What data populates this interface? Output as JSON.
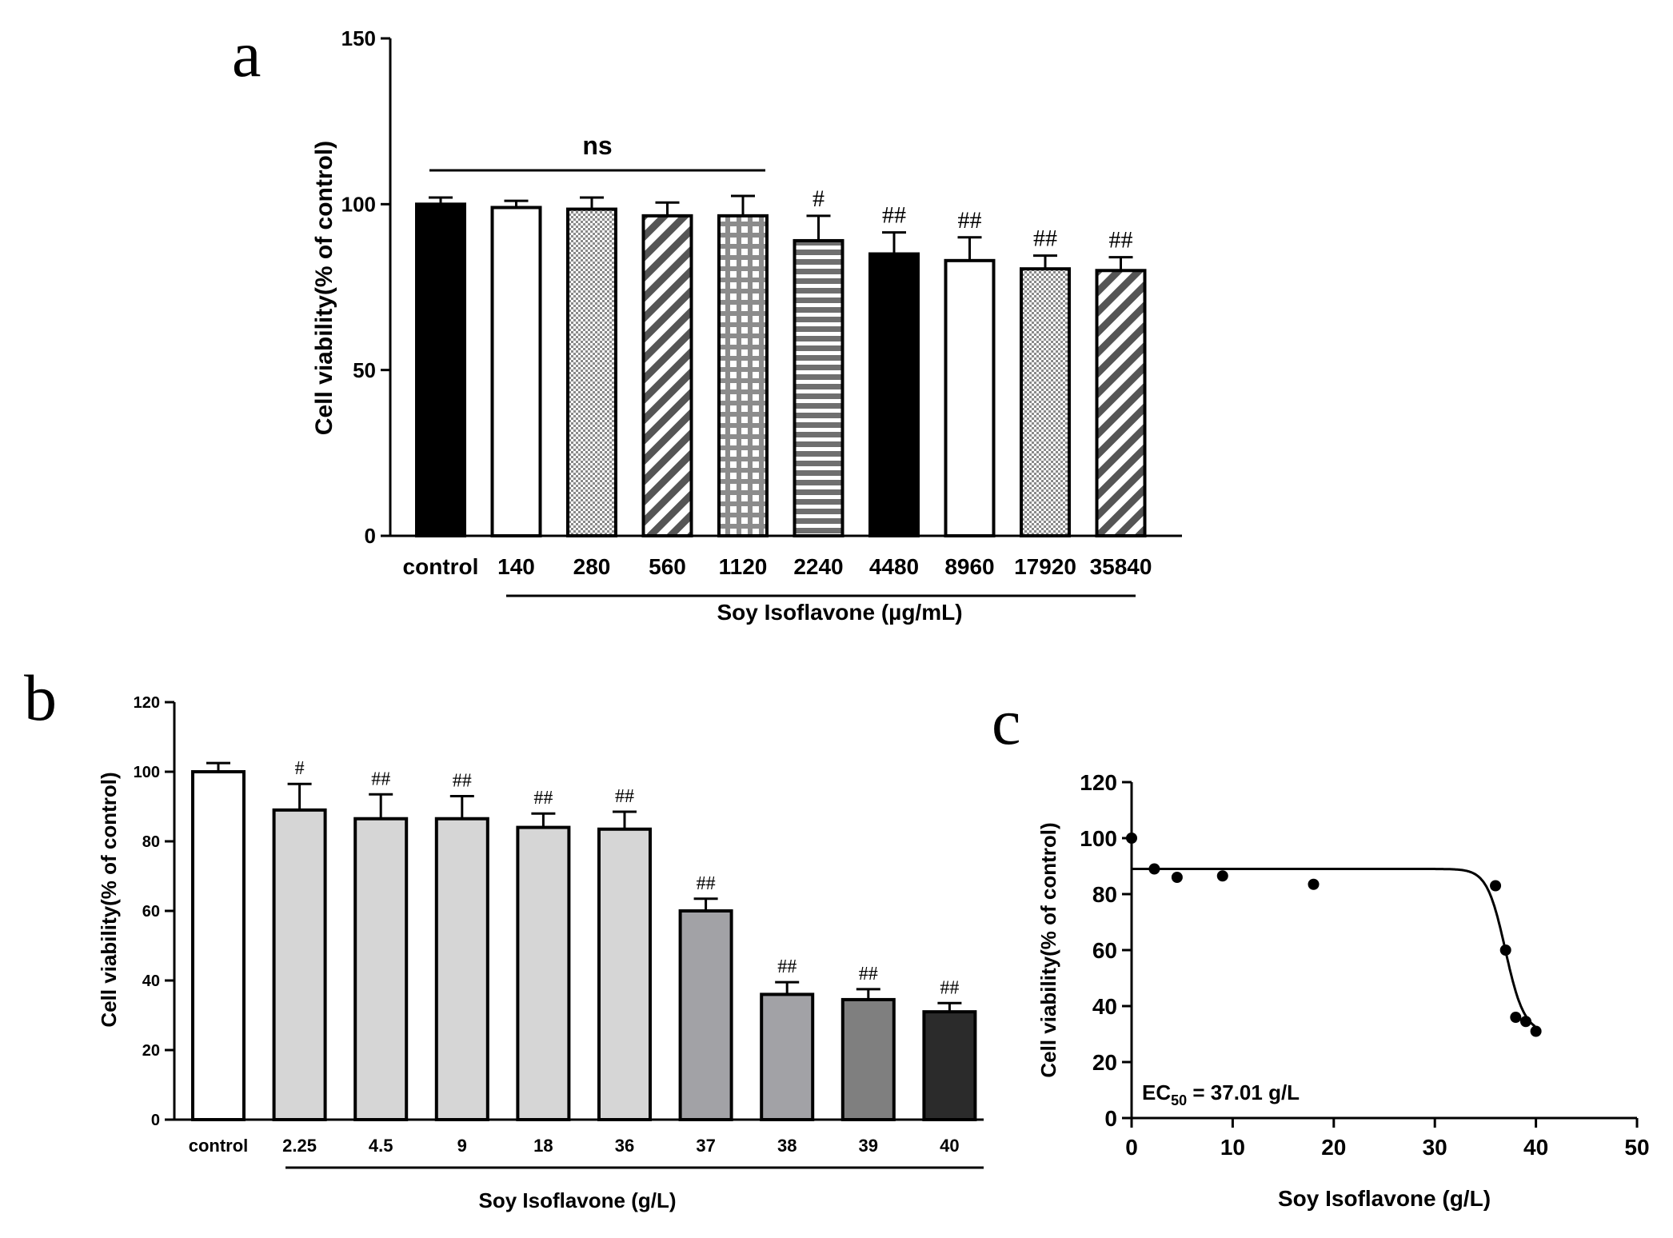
{
  "chart_data": [
    {
      "panel": "a",
      "type": "bar",
      "title": "",
      "ylabel": "Cell viability(% of control)",
      "xlabel": "Soy Isoflavone (µg/mL)",
      "ylim": [
        0,
        150
      ],
      "yticks": [
        0,
        50,
        100,
        150
      ],
      "categories": [
        "control",
        "140",
        "280",
        "560",
        "1120",
        "2240",
        "4480",
        "8960",
        "17920",
        "35840"
      ],
      "values": [
        100,
        99,
        98.5,
        96.5,
        96.5,
        89,
        85,
        83,
        80.5,
        80
      ],
      "errors": [
        2,
        2,
        3.5,
        4,
        6,
        7.5,
        6.5,
        7,
        4,
        4
      ],
      "patterns": [
        "solid-black",
        "white",
        "dots",
        "diag",
        "grid",
        "hstripe",
        "solid-black",
        "white",
        "dots",
        "diag"
      ],
      "significance": [
        "",
        "",
        "",
        "",
        "",
        "#",
        "##",
        "##",
        "##",
        "##"
      ],
      "ns_label": "ns"
    },
    {
      "panel": "b",
      "type": "bar",
      "title": "",
      "ylabel": "Cell viability(% of control)",
      "xlabel": "Soy Isoflavone (g/L)",
      "ylim": [
        0,
        120
      ],
      "yticks": [
        0,
        20,
        40,
        60,
        80,
        100,
        120
      ],
      "categories": [
        "control",
        "2.25",
        "4.5",
        "9",
        "18",
        "36",
        "37",
        "38",
        "39",
        "40"
      ],
      "values": [
        100,
        89,
        86.5,
        86.5,
        84,
        83.5,
        60,
        36,
        34.5,
        31
      ],
      "errors": [
        2.5,
        7.5,
        7,
        6.5,
        4,
        5,
        3.5,
        3.5,
        3,
        2.5
      ],
      "colors": [
        "#ffffff",
        "#d6d6d6",
        "#d6d6d6",
        "#d6d6d6",
        "#d6d6d6",
        "#d6d6d6",
        "#a2a2a6",
        "#a2a2a6",
        "#7f7f7f",
        "#2b2b2b"
      ],
      "significance": [
        "",
        "#",
        "##",
        "##",
        "##",
        "##",
        "##",
        "##",
        "##",
        "##"
      ]
    },
    {
      "panel": "c",
      "type": "scatter",
      "title": "",
      "ylabel": "Cell viability(% of control)",
      "xlabel": "Soy Isoflavone (g/L)",
      "xlim": [
        0,
        50
      ],
      "ylim": [
        0,
        120
      ],
      "xticks": [
        0,
        10,
        20,
        30,
        40,
        50
      ],
      "yticks": [
        0,
        20,
        40,
        60,
        80,
        100,
        120
      ],
      "points": {
        "x": [
          0,
          2.25,
          4.5,
          9,
          18,
          36,
          37,
          38,
          39,
          40
        ],
        "y": [
          100,
          89,
          86,
          86.5,
          83.5,
          83,
          60,
          36,
          34.5,
          31
        ]
      },
      "fit": {
        "top": 89,
        "bottom": 30,
        "ec50": 37.01,
        "hill": 40
      },
      "annotation": {
        "prefix": "EC",
        "sub": "50",
        "suffix": " = 37.01 g/L"
      }
    }
  ]
}
